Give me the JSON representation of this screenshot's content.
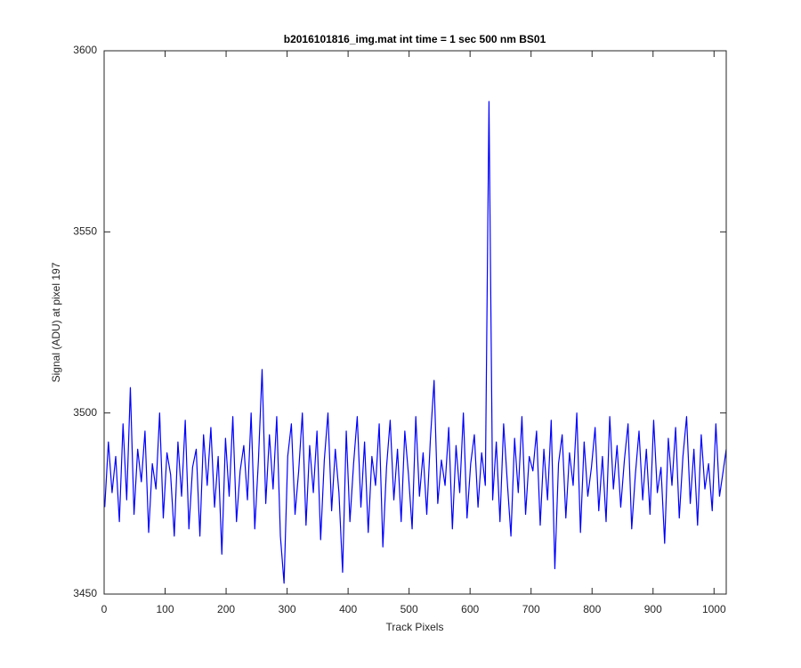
{
  "chart_data": {
    "type": "line",
    "title": "b2016101816_img.mat int time = 1 sec  500 nm BS01",
    "x_label": "Track Pixels",
    "y_label": "Signal (ADU) at pixel 197",
    "color": "#0000ff",
    "grid": false,
    "xlim": [
      0,
      1020
    ],
    "ylim": [
      3450,
      3600
    ],
    "xticks": [
      0,
      100,
      200,
      300,
      400,
      500,
      600,
      700,
      800,
      900,
      1000
    ],
    "yticks": [
      3450,
      3500,
      3550,
      3600
    ],
    "x": [
      1,
      7,
      13,
      19,
      25,
      31,
      37,
      43,
      49,
      55,
      61,
      67,
      73,
      79,
      85,
      91,
      97,
      103,
      109,
      115,
      121,
      127,
      133,
      139,
      145,
      151,
      157,
      163,
      169,
      175,
      181,
      187,
      193,
      199,
      205,
      211,
      217,
      223,
      229,
      235,
      241,
      247,
      253,
      259,
      265,
      271,
      277,
      283,
      289,
      295,
      301,
      307,
      313,
      319,
      325,
      331,
      337,
      343,
      349,
      355,
      361,
      367,
      373,
      379,
      385,
      391,
      397,
      403,
      409,
      415,
      421,
      427,
      433,
      439,
      445,
      451,
      457,
      463,
      469,
      475,
      481,
      487,
      493,
      499,
      505,
      511,
      517,
      523,
      529,
      535,
      541,
      547,
      553,
      559,
      565,
      571,
      577,
      583,
      589,
      595,
      601,
      607,
      613,
      619,
      625,
      631,
      637,
      643,
      649,
      655,
      661,
      667,
      673,
      679,
      685,
      691,
      697,
      703,
      709,
      715,
      721,
      727,
      733,
      739,
      745,
      751,
      757,
      763,
      769,
      775,
      781,
      787,
      793,
      799,
      805,
      811,
      817,
      823,
      829,
      835,
      841,
      847,
      853,
      859,
      865,
      871,
      877,
      883,
      889,
      895,
      901,
      907,
      913,
      919,
      925,
      931,
      937,
      943,
      949,
      955,
      961,
      967,
      973,
      979,
      985,
      991,
      997,
      1003,
      1009,
      1015,
      1020
    ],
    "values": [
      3474,
      3492,
      3478,
      3488,
      3470,
      3497,
      3476,
      3507,
      3472,
      3490,
      3481,
      3495,
      3467,
      3486,
      3479,
      3500,
      3471,
      3489,
      3483,
      3466,
      3492,
      3477,
      3498,
      3468,
      3485,
      3490,
      3466,
      3494,
      3480,
      3496,
      3474,
      3488,
      3461,
      3493,
      3477,
      3499,
      3470,
      3484,
      3491,
      3476,
      3500,
      3468,
      3487,
      3512,
      3475,
      3494,
      3479,
      3499,
      3466,
      3453,
      3488,
      3497,
      3472,
      3484,
      3500,
      3469,
      3491,
      3478,
      3495,
      3465,
      3487,
      3500,
      3473,
      3490,
      3478,
      3456,
      3495,
      3470,
      3486,
      3499,
      3474,
      3492,
      3467,
      3488,
      3480,
      3497,
      3463,
      3485,
      3498,
      3476,
      3490,
      3470,
      3495,
      3483,
      3468,
      3499,
      3477,
      3489,
      3472,
      3493,
      3509,
      3475,
      3487,
      3480,
      3496,
      3468,
      3491,
      3478,
      3500,
      3471,
      3486,
      3494,
      3474,
      3489,
      3480,
      3586,
      3476,
      3492,
      3470,
      3497,
      3481,
      3466,
      3493,
      3478,
      3499,
      3472,
      3488,
      3484,
      3495,
      3469,
      3490,
      3476,
      3498,
      3457,
      3486,
      3494,
      3471,
      3489,
      3480,
      3500,
      3467,
      3492,
      3477,
      3485,
      3496,
      3473,
      3488,
      3470,
      3499,
      3479,
      3491,
      3474,
      3487,
      3497,
      3468,
      3483,
      3495,
      3476,
      3490,
      3472,
      3498,
      3478,
      3485,
      3464,
      3493,
      3480,
      3496,
      3471,
      3488,
      3499,
      3475,
      3490,
      3469,
      3494,
      3479,
      3486,
      3473,
      3497,
      3477,
      3484,
      3490
    ]
  }
}
